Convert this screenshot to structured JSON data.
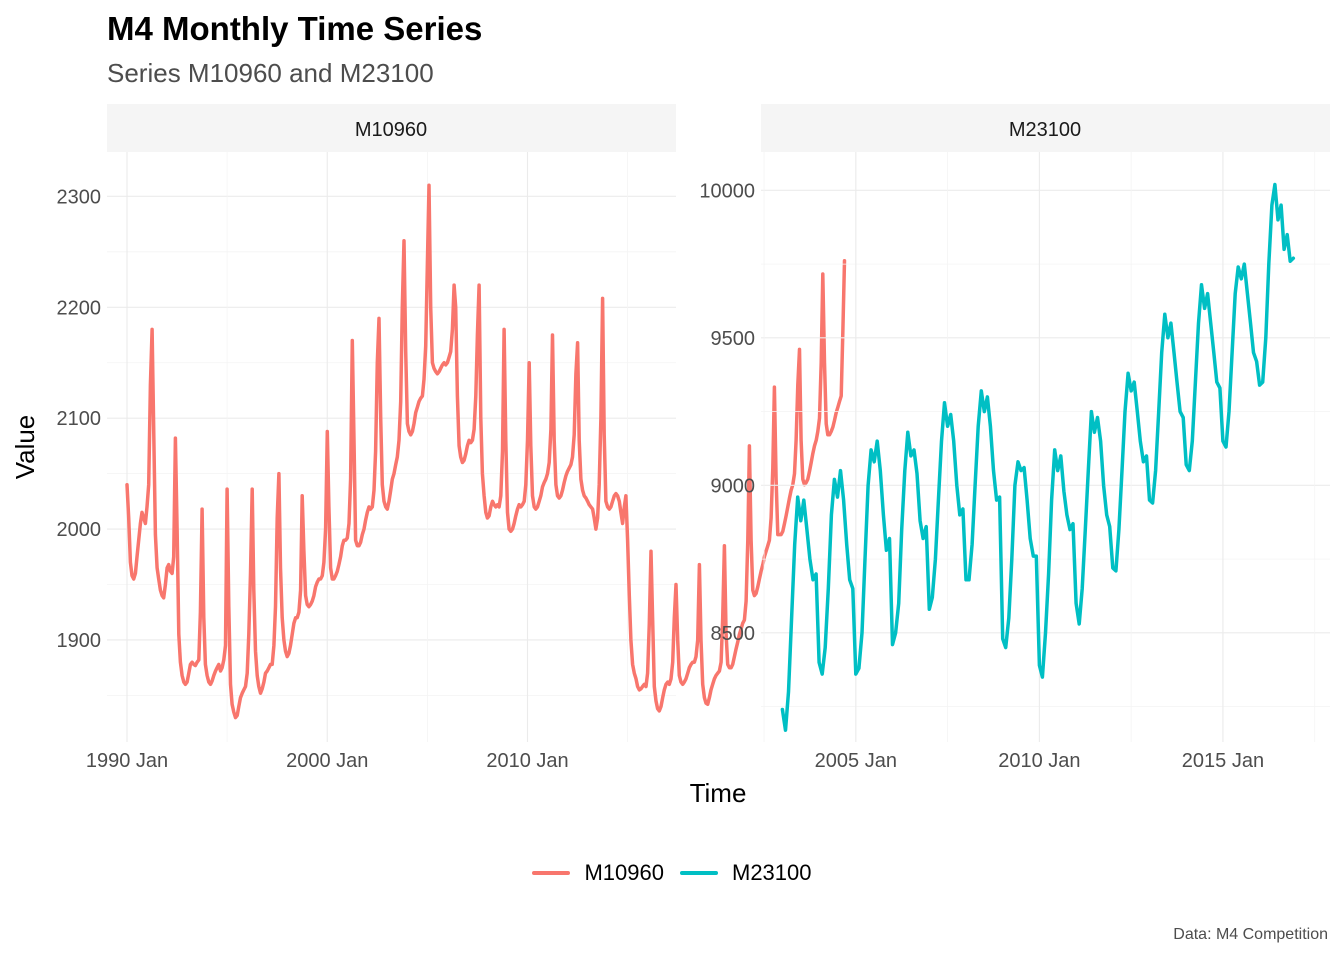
{
  "header": {
    "title": "M4 Monthly Time Series",
    "subtitle": "Series M10960 and M23100",
    "caption": "Data: M4 Competition"
  },
  "legend": {
    "items": [
      {
        "label": "M10960",
        "color": "#F8766D"
      },
      {
        "label": "M23100",
        "color": "#00BFC4"
      }
    ]
  },
  "chart_data": [
    {
      "type": "line",
      "panel_label": "M10960",
      "xlabel": "Time",
      "ylabel": "Value",
      "color": "#F8766D",
      "x_start": "1990 Jan",
      "x_end": "2016 Nov",
      "x_frequency": "monthly",
      "xlim": [
        "1989 Jan",
        "2017 Jun"
      ],
      "ylim": [
        1808,
        2340
      ],
      "x_ticks": [
        "1990 Jan",
        "2000 Jan",
        "2010 Jan"
      ],
      "y_ticks": [
        1900,
        2000,
        2100,
        2200,
        2300
      ],
      "grid": true,
      "series": [
        {
          "name": "M10960",
          "values": [
            2040,
            2010,
            1970,
            1958,
            1955,
            1960,
            1975,
            1990,
            2005,
            2015,
            2010,
            2005,
            2020,
            2040,
            2130,
            2180,
            2090,
            1995,
            1965,
            1955,
            1945,
            1940,
            1938,
            1950,
            1965,
            1968,
            1962,
            1960,
            1975,
            2082,
            2000,
            1905,
            1880,
            1868,
            1862,
            1860,
            1862,
            1870,
            1878,
            1880,
            1878,
            1877,
            1880,
            1882,
            1925,
            2018,
            1920,
            1878,
            1868,
            1862,
            1860,
            1863,
            1868,
            1872,
            1875,
            1878,
            1872,
            1875,
            1882,
            1895,
            2036,
            1930,
            1860,
            1842,
            1835,
            1830,
            1832,
            1840,
            1848,
            1852,
            1855,
            1858,
            1870,
            1905,
            1960,
            2036,
            1945,
            1890,
            1868,
            1858,
            1852,
            1856,
            1862,
            1870,
            1872,
            1875,
            1878,
            1878,
            1895,
            1930,
            2010,
            2050,
            1965,
            1920,
            1900,
            1890,
            1885,
            1888,
            1895,
            1905,
            1915,
            1920,
            1920,
            1925,
            1945,
            2030,
            1980,
            1940,
            1932,
            1930,
            1932,
            1935,
            1940,
            1948,
            1952,
            1955,
            1955,
            1958,
            1970,
            2000,
            2088,
            2020,
            1965,
            1955,
            1955,
            1958,
            1962,
            1968,
            1975,
            1985,
            1990,
            1990,
            1992,
            2005,
            2045,
            2170,
            2080,
            1990,
            1985,
            1985,
            1988,
            1995,
            2000,
            2008,
            2015,
            2020,
            2018,
            2020,
            2035,
            2070,
            2150,
            2190,
            2100,
            2040,
            2025,
            2020,
            2018,
            2025,
            2035,
            2045,
            2050,
            2058,
            2065,
            2080,
            2115,
            2200,
            2260,
            2160,
            2095,
            2088,
            2085,
            2088,
            2095,
            2105,
            2110,
            2115,
            2118,
            2120,
            2135,
            2165,
            2240,
            2310,
            2200,
            2150,
            2145,
            2142,
            2140,
            2142,
            2145,
            2148,
            2150,
            2148,
            2150,
            2155,
            2160,
            2180,
            2220,
            2200,
            2120,
            2075,
            2065,
            2060,
            2062,
            2068,
            2075,
            2080,
            2078,
            2080,
            2090,
            2120,
            2175,
            2220,
            2100,
            2050,
            2030,
            2015,
            2010,
            2012,
            2020,
            2025,
            2022,
            2020,
            2022,
            2020,
            2030,
            2070,
            2180,
            2080,
            2015,
            2000,
            1998,
            2000,
            2005,
            2012,
            2018,
            2022,
            2020,
            2022,
            2025,
            2040,
            2080,
            2150,
            2075,
            2030,
            2020,
            2018,
            2020,
            2025,
            2030,
            2038,
            2042,
            2045,
            2050,
            2060,
            2090,
            2175,
            2080,
            2040,
            2030,
            2028,
            2030,
            2035,
            2042,
            2048,
            2052,
            2055,
            2058,
            2065,
            2085,
            2140,
            2168,
            2080,
            2045,
            2035,
            2030,
            2028,
            2025,
            2022,
            2020,
            2018,
            2010,
            2000,
            2010,
            2040,
            2100,
            2208,
            2085,
            2025,
            2020,
            2018,
            2020,
            2025,
            2030,
            2032,
            2030,
            2025,
            2015,
            2005,
            2020,
            2030,
            1990,
            1940,
            1900,
            1878,
            1870,
            1865,
            1858,
            1855,
            1856,
            1858,
            1860,
            1858,
            1870,
            1915,
            1980,
            1920,
            1858,
            1845,
            1838,
            1836,
            1840,
            1848,
            1855,
            1860,
            1862,
            1860,
            1865,
            1880,
            1920,
            1950,
            1900,
            1868,
            1862,
            1860,
            1862,
            1865,
            1870,
            1875,
            1878,
            1880,
            1880,
            1885,
            1900,
            1968,
            1900,
            1860,
            1848,
            1843,
            1842,
            1848,
            1855,
            1860,
            1865,
            1868,
            1870,
            1872,
            1880,
            1920,
            1985,
            1905,
            1878,
            1875,
            1875,
            1878,
            1885,
            1892,
            1898,
            1905,
            1910,
            1915,
            1918,
            1935,
            1990,
            2075,
            1990,
            1945,
            1940,
            1942,
            1948,
            1955,
            1962,
            1968,
            1975,
            1980,
            1985,
            1990,
            2010,
            2055,
            2128,
            2045,
            1995,
            1995,
            1995,
            1998,
            2005,
            2012,
            2020,
            2028,
            2035,
            2040,
            2050,
            2080,
            2130,
            2162,
            2080,
            2045,
            2040,
            2042,
            2045,
            2052,
            2060,
            2068,
            2075,
            2080,
            2088,
            2100,
            2150,
            2230,
            2150,
            2095,
            2085,
            2085,
            2088,
            2092,
            2098,
            2105,
            2110,
            2115,
            2120,
            2180,
            2242
          ]
        }
      ]
    },
    {
      "type": "line",
      "panel_label": "M23100",
      "xlabel": "Time",
      "ylabel": "Value",
      "color": "#00BFC4",
      "x_start": "2003 Jan",
      "x_end": "2017 Jan",
      "x_frequency": "monthly",
      "xlim": [
        "2002 Jun",
        "2017 Dec"
      ],
      "ylim": [
        8130,
        10130
      ],
      "x_ticks": [
        "2005 Jan",
        "2010 Jan",
        "2015 Jan"
      ],
      "y_ticks": [
        8500,
        9000,
        9500,
        10000
      ],
      "grid": true,
      "series": [
        {
          "name": "M23100",
          "values": [
            8240,
            8170,
            8300,
            8550,
            8800,
            8960,
            8880,
            8950,
            8850,
            8750,
            8680,
            8700,
            8400,
            8360,
            8450,
            8650,
            8900,
            9020,
            8960,
            9050,
            8950,
            8800,
            8680,
            8650,
            8360,
            8380,
            8500,
            8750,
            9000,
            9120,
            9080,
            9150,
            9050,
            8900,
            8780,
            8820,
            8460,
            8500,
            8600,
            8850,
            9050,
            9180,
            9100,
            9120,
            9040,
            8880,
            8820,
            8860,
            8580,
            8620,
            8750,
            8950,
            9150,
            9280,
            9200,
            9240,
            9150,
            9000,
            8900,
            8920,
            8680,
            8680,
            8800,
            9000,
            9200,
            9320,
            9250,
            9300,
            9200,
            9050,
            8950,
            8960,
            8480,
            8450,
            8550,
            8750,
            9000,
            9080,
            9050,
            9060,
            8950,
            8820,
            8760,
            8760,
            8390,
            8350,
            8500,
            8700,
            8950,
            9120,
            9050,
            9100,
            8980,
            8900,
            8850,
            8870,
            8600,
            8530,
            8650,
            8850,
            9050,
            9250,
            9180,
            9230,
            9150,
            9000,
            8900,
            8860,
            8720,
            8710,
            8850,
            9050,
            9250,
            9380,
            9320,
            9350,
            9250,
            9150,
            9080,
            9100,
            8950,
            8940,
            9050,
            9250,
            9450,
            9580,
            9500,
            9550,
            9450,
            9350,
            9250,
            9230,
            9070,
            9050,
            9150,
            9350,
            9550,
            9680,
            9600,
            9650,
            9550,
            9450,
            9350,
            9330,
            9150,
            9130,
            9250,
            9450,
            9650,
            9740,
            9700,
            9750,
            9650,
            9550,
            9450,
            9420,
            9340,
            9350,
            9500,
            9750,
            9950,
            10020,
            9900,
            9950,
            9800,
            9850,
            9760,
            9770
          ]
        }
      ]
    }
  ]
}
